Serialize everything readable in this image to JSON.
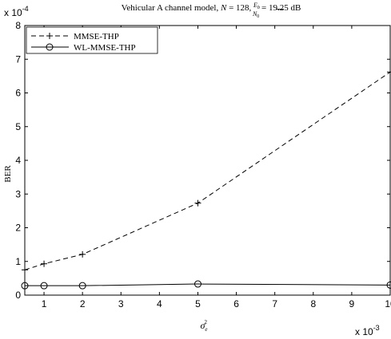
{
  "chart_data": {
    "type": "line",
    "title_prefix": "Vehicular A channel model, ",
    "title_n": "N",
    "title_n_value": " = 128, ",
    "title_frac_num": "E",
    "title_frac_num_sub": "b",
    "title_frac_den": "N",
    "title_frac_den_sub": "0",
    "title_suffix": " = 19.25 dB",
    "xlabel_base": "σ",
    "xlabel_sub": "e",
    "xlabel_sup": "2",
    "ylabel": "BER",
    "y_exponent_label": "x 10",
    "y_exponent": "-4",
    "x_exponent_label": "x 10",
    "x_exponent": "-3",
    "xlim": [
      0.5,
      10
    ],
    "ylim": [
      0,
      8
    ],
    "x_ticks": [
      1,
      2,
      3,
      4,
      5,
      6,
      7,
      8,
      9,
      10
    ],
    "x_tick_labels": [
      "1",
      "2",
      "3",
      "4",
      "5",
      "6",
      "7",
      "8",
      "9",
      "10"
    ],
    "y_ticks": [
      0,
      1,
      2,
      3,
      4,
      5,
      6,
      7,
      8
    ],
    "y_tick_labels": [
      "0",
      "1",
      "2",
      "3",
      "4",
      "5",
      "6",
      "7",
      "8"
    ],
    "grid": false,
    "legend_position": "top-left",
    "series": [
      {
        "name": "MMSE-THP",
        "style": "dashed",
        "marker": "plus",
        "x": [
          0.5,
          1,
          2,
          5,
          10
        ],
        "y": [
          0.75,
          0.93,
          1.21,
          2.73,
          6.62
        ]
      },
      {
        "name": "WL-MMSE-THP",
        "style": "solid",
        "marker": "circle",
        "x": [
          0.5,
          1,
          2,
          5,
          10
        ],
        "y": [
          0.28,
          0.28,
          0.28,
          0.33,
          0.3
        ]
      }
    ]
  }
}
